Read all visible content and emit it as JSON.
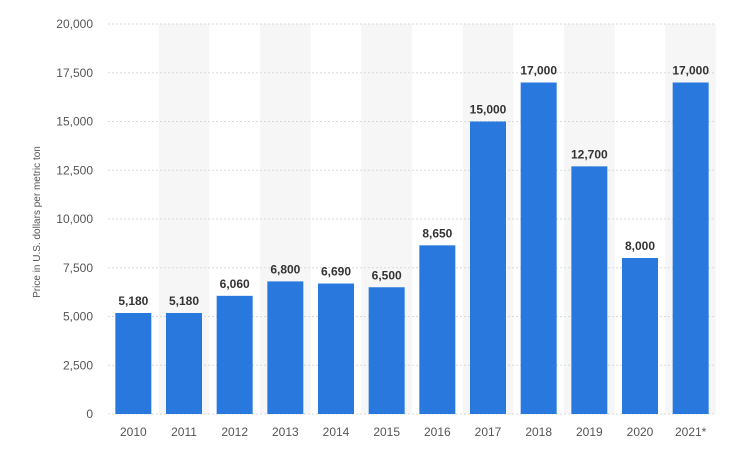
{
  "chart_data": {
    "type": "bar",
    "title": "",
    "xlabel": "",
    "ylabel": "Price in U.S. dollars per metric ton",
    "categories": [
      "2010",
      "2011",
      "2012",
      "2013",
      "2014",
      "2015",
      "2016",
      "2017",
      "2018",
      "2019",
      "2020",
      "2021*"
    ],
    "values": [
      5180,
      5180,
      6060,
      6800,
      6690,
      6500,
      8650,
      15000,
      17000,
      12700,
      8000,
      17000
    ],
    "data_labels": [
      "5,180",
      "5,180",
      "6,060",
      "6,800",
      "6,690",
      "6,500",
      "8,650",
      "15,000",
      "17,000",
      "12,700",
      "8,000",
      "17,000"
    ],
    "ylim": [
      0,
      20000
    ],
    "yticks": [
      0,
      2500,
      5000,
      7500,
      10000,
      12500,
      15000,
      17500,
      20000
    ],
    "ytick_labels": [
      "0",
      "2,500",
      "5,000",
      "7,500",
      "10,000",
      "12,500",
      "15,000",
      "17,500",
      "20,000"
    ],
    "grid": true,
    "colors": {
      "bar": "#2878de",
      "band": "#f6f6f6",
      "grid": "#d9d9d9"
    }
  }
}
